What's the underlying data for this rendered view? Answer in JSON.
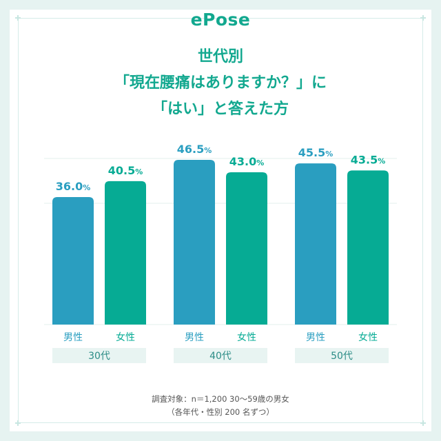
{
  "logo": "ePose",
  "title_lines": [
    "世代別",
    "「現在腰痛はありますか？」に",
    "「はい」と答えた方"
  ],
  "footnote_lines": [
    "調査対象：n＝1,200 30〜59歳の男女",
    "（各年代・性別 200 名ずつ）"
  ],
  "colors": {
    "male": "#2a9ec0",
    "female": "#06ab94",
    "accent": "#12a88f",
    "group_band": "#e8f4f2"
  },
  "chart_data": {
    "type": "bar",
    "title": "",
    "xlabel": "",
    "ylabel": "",
    "unit": "%",
    "ylim": [
      0,
      50
    ],
    "grid": true,
    "legend": "none",
    "groups": [
      {
        "label": "30代",
        "bars": [
          {
            "category": "男性",
            "value": 36.0,
            "display": "36.0"
          },
          {
            "category": "女性",
            "value": 40.5,
            "display": "40.5"
          }
        ]
      },
      {
        "label": "40代",
        "bars": [
          {
            "category": "男性",
            "value": 46.5,
            "display": "46.5"
          },
          {
            "category": "女性",
            "value": 43.0,
            "display": "43.0"
          }
        ]
      },
      {
        "label": "50代",
        "bars": [
          {
            "category": "男性",
            "value": 45.5,
            "display": "45.5"
          },
          {
            "category": "女性",
            "value": 43.5,
            "display": "43.5"
          }
        ]
      }
    ]
  }
}
